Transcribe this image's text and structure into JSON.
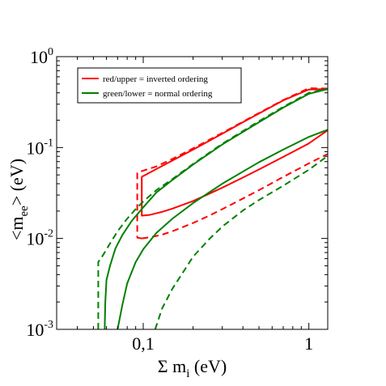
{
  "chart_data": {
    "type": "line",
    "xscale": "log",
    "yscale": "log",
    "xlim": [
      0.03,
      1.3
    ],
    "ylim": [
      0.001,
      1.0
    ],
    "xlabel": {
      "prefix": "Σ m",
      "sub": "i",
      "suffix": " (eV)"
    },
    "ylabel": {
      "prefix": "<m",
      "sub": "ee",
      "suffix": "> (eV)"
    },
    "x_ticks": [
      {
        "value": 0.1,
        "label": "0,1"
      },
      {
        "value": 1.0,
        "label": "1"
      }
    ],
    "y_ticks": [
      {
        "value": 0.001,
        "base": "10",
        "exp": "-3"
      },
      {
        "value": 0.01,
        "base": "10",
        "exp": "-2"
      },
      {
        "value": 0.1,
        "base": "10",
        "exp": "-1"
      },
      {
        "value": 1.0,
        "base": "10",
        "exp": "0"
      }
    ],
    "legend": {
      "position": "top-left",
      "entries": [
        {
          "label": "red/upper = inverted ordering",
          "color": "#ff0000"
        },
        {
          "label": "green/lower = normal ordering",
          "color": "#008000"
        }
      ]
    },
    "series": [
      {
        "color": "#ff0000",
        "style": "solid",
        "points": [
          [
            0.098,
            0.048
          ],
          [
            0.098,
            0.04
          ],
          [
            0.098,
            0.03
          ],
          [
            0.098,
            0.022
          ],
          [
            0.098,
            0.0178
          ],
          [
            0.11,
            0.0182
          ],
          [
            0.13,
            0.0196
          ],
          [
            0.15,
            0.0213
          ],
          [
            0.2,
            0.0258
          ],
          [
            0.25,
            0.031
          ],
          [
            0.3,
            0.0362
          ],
          [
            0.4,
            0.0468
          ],
          [
            0.5,
            0.0575
          ],
          [
            0.7,
            0.079
          ],
          [
            1.0,
            0.111
          ],
          [
            1.3,
            0.155
          ]
        ]
      },
      {
        "color": "#ff0000",
        "style": "solid",
        "points": [
          [
            0.098,
            0.048
          ],
          [
            0.1,
            0.0485
          ],
          [
            0.12,
            0.058
          ],
          [
            0.15,
            0.072
          ],
          [
            0.2,
            0.095
          ],
          [
            0.3,
            0.142
          ],
          [
            0.4,
            0.19
          ],
          [
            0.5,
            0.237
          ],
          [
            0.7,
            0.33
          ],
          [
            1.0,
            0.435
          ],
          [
            1.3,
            0.44
          ]
        ]
      },
      {
        "color": "#ff0000",
        "style": "dashed",
        "points": [
          [
            0.098,
            0.01
          ],
          [
            0.092,
            0.0102
          ],
          [
            0.092,
            0.015
          ],
          [
            0.092,
            0.025
          ],
          [
            0.092,
            0.04
          ],
          [
            0.092,
            0.053
          ],
          [
            0.1,
            0.0557
          ],
          [
            0.12,
            0.062
          ],
          [
            0.15,
            0.075
          ],
          [
            0.2,
            0.098
          ],
          [
            0.3,
            0.145
          ],
          [
            0.5,
            0.24
          ],
          [
            0.7,
            0.333
          ],
          [
            1.0,
            0.45
          ],
          [
            1.3,
            0.445
          ]
        ]
      },
      {
        "color": "#ff0000",
        "style": "dashed",
        "points": [
          [
            0.098,
            0.01
          ],
          [
            0.11,
            0.0103
          ],
          [
            0.13,
            0.011
          ],
          [
            0.15,
            0.012
          ],
          [
            0.2,
            0.0148
          ],
          [
            0.25,
            0.0178
          ],
          [
            0.3,
            0.021
          ],
          [
            0.4,
            0.0275
          ],
          [
            0.5,
            0.034
          ],
          [
            0.7,
            0.0475
          ],
          [
            1.0,
            0.067
          ],
          [
            1.3,
            0.085
          ]
        ]
      },
      {
        "color": "#008000",
        "style": "solid",
        "points": [
          [
            0.0585,
            0.001
          ],
          [
            0.059,
            0.002
          ],
          [
            0.06,
            0.0035
          ],
          [
            0.063,
            0.005
          ],
          [
            0.068,
            0.0078
          ],
          [
            0.075,
            0.011
          ],
          [
            0.085,
            0.0155
          ],
          [
            0.1,
            0.022
          ],
          [
            0.12,
            0.032
          ],
          [
            0.15,
            0.044
          ],
          [
            0.2,
            0.065
          ],
          [
            0.3,
            0.108
          ],
          [
            0.5,
            0.19
          ],
          [
            0.7,
            0.275
          ],
          [
            1.0,
            0.39
          ],
          [
            1.3,
            0.44
          ]
        ]
      },
      {
        "color": "#008000",
        "style": "solid",
        "points": [
          [
            0.07,
            0.001
          ],
          [
            0.075,
            0.0019
          ],
          [
            0.08,
            0.0032
          ],
          [
            0.09,
            0.0055
          ],
          [
            0.1,
            0.0076
          ],
          [
            0.12,
            0.0115
          ],
          [
            0.15,
            0.0165
          ],
          [
            0.2,
            0.0245
          ],
          [
            0.3,
            0.04
          ],
          [
            0.5,
            0.069
          ],
          [
            0.7,
            0.095
          ],
          [
            1.0,
            0.131
          ],
          [
            1.3,
            0.157
          ]
        ]
      },
      {
        "color": "#008000",
        "style": "dashed",
        "points": [
          [
            0.0535,
            0.001
          ],
          [
            0.0535,
            0.003
          ],
          [
            0.0535,
            0.0055
          ],
          [
            0.057,
            0.0065
          ],
          [
            0.063,
            0.0088
          ],
          [
            0.07,
            0.012
          ],
          [
            0.08,
            0.0165
          ],
          [
            0.09,
            0.021
          ],
          [
            0.1,
            0.0255
          ],
          [
            0.12,
            0.034
          ],
          [
            0.15,
            0.045
          ],
          [
            0.2,
            0.066
          ],
          [
            0.3,
            0.11
          ],
          [
            0.5,
            0.195
          ],
          [
            0.7,
            0.28
          ],
          [
            1.0,
            0.4
          ],
          [
            1.3,
            0.445
          ]
        ]
      },
      {
        "color": "#008000",
        "style": "dashed",
        "points": [
          [
            0.118,
            0.001
          ],
          [
            0.13,
            0.0017
          ],
          [
            0.15,
            0.0028
          ],
          [
            0.2,
            0.0063
          ],
          [
            0.25,
            0.0098
          ],
          [
            0.3,
            0.0135
          ],
          [
            0.4,
            0.0203
          ],
          [
            0.5,
            0.0265
          ],
          [
            0.7,
            0.038
          ],
          [
            1.0,
            0.057
          ],
          [
            1.3,
            0.081
          ]
        ]
      }
    ]
  }
}
